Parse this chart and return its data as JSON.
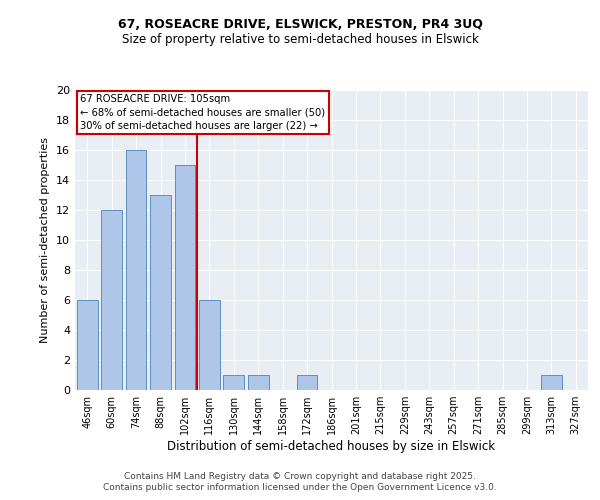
{
  "title1": "67, ROSEACRE DRIVE, ELSWICK, PRESTON, PR4 3UQ",
  "title2": "Size of property relative to semi-detached houses in Elswick",
  "xlabel": "Distribution of semi-detached houses by size in Elswick",
  "ylabel": "Number of semi-detached properties",
  "categories": [
    "46sqm",
    "60sqm",
    "74sqm",
    "88sqm",
    "102sqm",
    "116sqm",
    "130sqm",
    "144sqm",
    "158sqm",
    "172sqm",
    "186sqm",
    "201sqm",
    "215sqm",
    "229sqm",
    "243sqm",
    "257sqm",
    "271sqm",
    "285sqm",
    "299sqm",
    "313sqm",
    "327sqm"
  ],
  "values": [
    6,
    12,
    16,
    13,
    15,
    6,
    1,
    1,
    0,
    1,
    0,
    0,
    0,
    0,
    0,
    0,
    0,
    0,
    0,
    1,
    0
  ],
  "bar_color": "#aec6e8",
  "bar_edge_color": "#5a8fc0",
  "bg_color": "#e8eef4",
  "grid_color": "#ffffff",
  "vline_index": 4,
  "vline_color": "#cc0000",
  "annotation_title": "67 ROSEACRE DRIVE: 105sqm",
  "annotation_line1": "← 68% of semi-detached houses are smaller (50)",
  "annotation_line2": "30% of semi-detached houses are larger (22) →",
  "annotation_box_color": "#cc0000",
  "footer1": "Contains HM Land Registry data © Crown copyright and database right 2025.",
  "footer2": "Contains public sector information licensed under the Open Government Licence v3.0.",
  "ylim": [
    0,
    20
  ],
  "yticks": [
    0,
    2,
    4,
    6,
    8,
    10,
    12,
    14,
    16,
    18,
    20
  ],
  "title1_fontsize": 9,
  "title2_fontsize": 8.5,
  "ylabel_fontsize": 8,
  "xlabel_fontsize": 8.5,
  "tick_fontsize": 7,
  "footer_fontsize": 6.5
}
